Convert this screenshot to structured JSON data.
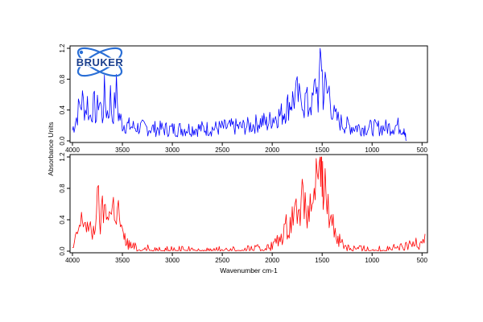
{
  "logo": {
    "text": "BRUKER",
    "color": "#1a3e8c"
  },
  "chart_data": {
    "type": "line",
    "xlabel": "Wavenumber cm-1",
    "ylabel": "Absorbance Units",
    "x_ticks": [
      4000,
      3500,
      3000,
      2500,
      2000,
      1500,
      1000,
      500
    ],
    "y_ticks": [
      0.0,
      0.4,
      0.8,
      1.2
    ],
    "y_tick_labels": [
      "0.0",
      "0.4",
      "0.8",
      "1.2"
    ],
    "xlim": [
      4000,
      470
    ],
    "ylim": [
      0,
      1.2
    ],
    "grid": false,
    "panels": [
      {
        "color": "#0000ff",
        "series": [
          {
            "x": [
              4000,
              3960,
              3930,
              3900,
              3870,
              3850,
              3830,
              3800,
              3780,
              3760,
              3740,
              3720,
              3700,
              3680,
              3660,
              3640,
              3620,
              3600,
              3580,
              3560,
              3540,
              3500,
              3450,
              3400,
              3300,
              3200,
              3000,
              2800,
              2600,
              2400,
              2300,
              2200,
              2100,
              2050,
              2000,
              1950,
              1900,
              1860,
              1820,
              1780,
              1750,
              1720,
              1700,
              1680,
              1660,
              1640,
              1620,
              1600,
              1580,
              1560,
              1540,
              1520,
              1510,
              1500,
              1490,
              1470,
              1450,
              1430,
              1410,
              1390,
              1370,
              1350,
              1320,
              1300,
              1250,
              1200,
              1150,
              1100,
              1000,
              900,
              800,
              750,
              720,
              700,
              690,
              680,
              670,
              665,
              660
            ],
            "y": [
              0.14,
              0.3,
              0.45,
              0.52,
              0.4,
              0.5,
              0.3,
              0.42,
              0.45,
              0.28,
              0.55,
              0.48,
              0.3,
              0.6,
              0.4,
              0.35,
              0.58,
              0.3,
              0.45,
              0.65,
              0.35,
              0.22,
              0.2,
              0.18,
              0.17,
              0.16,
              0.15,
              0.16,
              0.16,
              0.18,
              0.18,
              0.2,
              0.26,
              0.22,
              0.3,
              0.32,
              0.35,
              0.42,
              0.5,
              0.55,
              0.6,
              0.5,
              0.62,
              0.45,
              0.58,
              0.4,
              0.52,
              0.45,
              0.62,
              0.75,
              0.55,
              0.9,
              1.2,
              0.88,
              0.6,
              0.7,
              0.6,
              0.65,
              0.48,
              0.35,
              0.3,
              0.28,
              0.25,
              0.22,
              0.2,
              0.18,
              0.18,
              0.17,
              0.17,
              0.17,
              0.18,
              0.2,
              0.18,
              0.17,
              0.15,
              0.2,
              0.12,
              0.05,
              0.0
            ]
          }
        ]
      },
      {
        "color": "#ff0000",
        "series": [
          {
            "x": [
              4000,
              3980,
              3960,
              3940,
              3920,
              3900,
              3880,
              3860,
              3840,
              3820,
              3800,
              3780,
              3760,
              3740,
              3720,
              3700,
              3680,
              3660,
              3640,
              3620,
              3600,
              3580,
              3560,
              3540,
              3520,
              3500,
              3450,
              3400,
              3300,
              3200,
              3000,
              2800,
              2600,
              2400,
              2300,
              2200,
              2100,
              2050,
              2000,
              1980,
              1950,
              1920,
              1900,
              1880,
              1860,
              1840,
              1820,
              1800,
              1780,
              1760,
              1740,
              1720,
              1700,
              1680,
              1660,
              1640,
              1620,
              1600,
              1580,
              1560,
              1540,
              1520,
              1510,
              1500,
              1490,
              1470,
              1450,
              1430,
              1410,
              1390,
              1370,
              1350,
              1300,
              1250,
              1200,
              1100,
              1000,
              900,
              800,
              700,
              650,
              600,
              570,
              550,
              530,
              510,
              490,
              470
            ],
            "y": [
              0.02,
              0.08,
              0.18,
              0.28,
              0.32,
              0.42,
              0.38,
              0.35,
              0.28,
              0.25,
              0.22,
              0.3,
              0.55,
              0.62,
              0.35,
              0.5,
              0.55,
              0.42,
              0.6,
              0.45,
              0.55,
              0.58,
              0.45,
              0.52,
              0.35,
              0.2,
              0.1,
              0.05,
              0.03,
              0.02,
              0.01,
              0.01,
              0.01,
              0.01,
              0.01,
              0.02,
              0.03,
              0.05,
              0.06,
              0.1,
              0.12,
              0.15,
              0.2,
              0.25,
              0.32,
              0.28,
              0.38,
              0.45,
              0.55,
              0.5,
              0.72,
              0.55,
              0.7,
              0.45,
              0.62,
              0.4,
              0.55,
              0.62,
              0.8,
              0.9,
              0.65,
              1.05,
              1.2,
              0.95,
              0.7,
              0.8,
              0.55,
              0.5,
              0.45,
              0.35,
              0.25,
              0.2,
              0.1,
              0.06,
              0.04,
              0.02,
              0.02,
              0.02,
              0.03,
              0.04,
              0.06,
              0.08,
              0.12,
              0.15,
              0.1,
              0.18,
              0.14,
              0.22
            ]
          }
        ]
      }
    ]
  }
}
